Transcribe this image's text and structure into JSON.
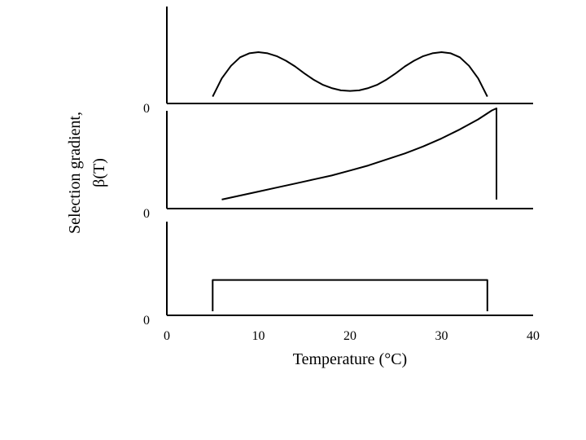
{
  "chart_data": {
    "type": "line",
    "ylabel_line1": "Selection gradient,",
    "ylabel_line2": "β(T)",
    "xlabel": "Temperature (°C)",
    "xlim": [
      0,
      40
    ],
    "x_ticks": [
      "0",
      "10",
      "20",
      "30",
      "40"
    ],
    "panels": [
      {
        "zero_label": "0",
        "ylim": [
          0,
          1
        ],
        "series": [
          {
            "x": [
              5,
              6,
              7,
              8,
              9,
              10,
              11,
              12,
              13,
              14,
              15,
              16,
              17,
              18,
              19,
              20,
              21,
              22,
              23,
              24,
              25,
              26,
              27,
              28,
              29,
              30,
              31,
              32,
              33,
              34,
              35
            ],
            "y": [
              0.12,
              0.44,
              0.66,
              0.81,
              0.88,
              0.9,
              0.88,
              0.83,
              0.75,
              0.65,
              0.53,
              0.42,
              0.33,
              0.27,
              0.23,
              0.22,
              0.23,
              0.27,
              0.33,
              0.42,
              0.53,
              0.65,
              0.75,
              0.83,
              0.88,
              0.9,
              0.88,
              0.81,
              0.66,
              0.44,
              0.12
            ]
          }
        ]
      },
      {
        "zero_label": "0",
        "ylim": [
          0,
          1
        ],
        "series": [
          {
            "x": [
              6,
              8,
              10,
              12,
              14,
              16,
              18,
              20,
              22,
              24,
              26,
              28,
              30,
              32,
              34,
              35.5,
              36,
              36
            ],
            "y": [
              0.09,
              0.13,
              0.17,
              0.21,
              0.25,
              0.29,
              0.33,
              0.38,
              0.43,
              0.49,
              0.55,
              0.62,
              0.7,
              0.79,
              0.89,
              0.98,
              1.0,
              0.09
            ]
          }
        ]
      },
      {
        "zero_label": "0",
        "ylim": [
          0,
          1
        ],
        "series": [
          {
            "x": [
              5,
              5,
              35,
              35
            ],
            "y": [
              0.04,
              0.35,
              0.35,
              0.04
            ]
          }
        ]
      }
    ]
  }
}
